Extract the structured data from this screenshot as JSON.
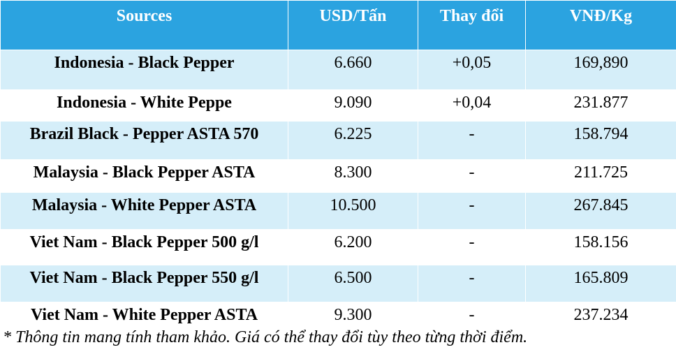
{
  "table": {
    "header": [
      "Sources",
      "USD/Tấn",
      "Thay đổi",
      "VNĐ/Kg"
    ],
    "rows": [
      [
        "Indonesia - Black Pepper",
        "6.660",
        "+0,05",
        "169,890"
      ],
      [
        "Indonesia - White Peppe",
        "9.090",
        "+0,04",
        "231.877"
      ],
      [
        "Brazil Black - Pepper ASTA 570",
        "6.225",
        "-",
        "158.794"
      ],
      [
        "Malaysia - Black Pepper ASTA",
        "8.300",
        "-",
        "211.725"
      ],
      [
        "Malaysia - White Pepper ASTA",
        "10.500",
        "-",
        "267.845"
      ],
      [
        "Viet Nam - Black Pepper 500 g/l",
        "6.200",
        "-",
        "158.156"
      ],
      [
        "Viet Nam - Black Pepper 550 g/l",
        "6.500",
        "-",
        "165.809"
      ],
      [
        "Viet Nam - White Pepper ASTA",
        "9.300",
        "-",
        "237.234"
      ]
    ]
  },
  "footnote": "* Thông tin mang tính tham khảo. Giá có thể thay đổi tùy theo từng thời điểm."
}
